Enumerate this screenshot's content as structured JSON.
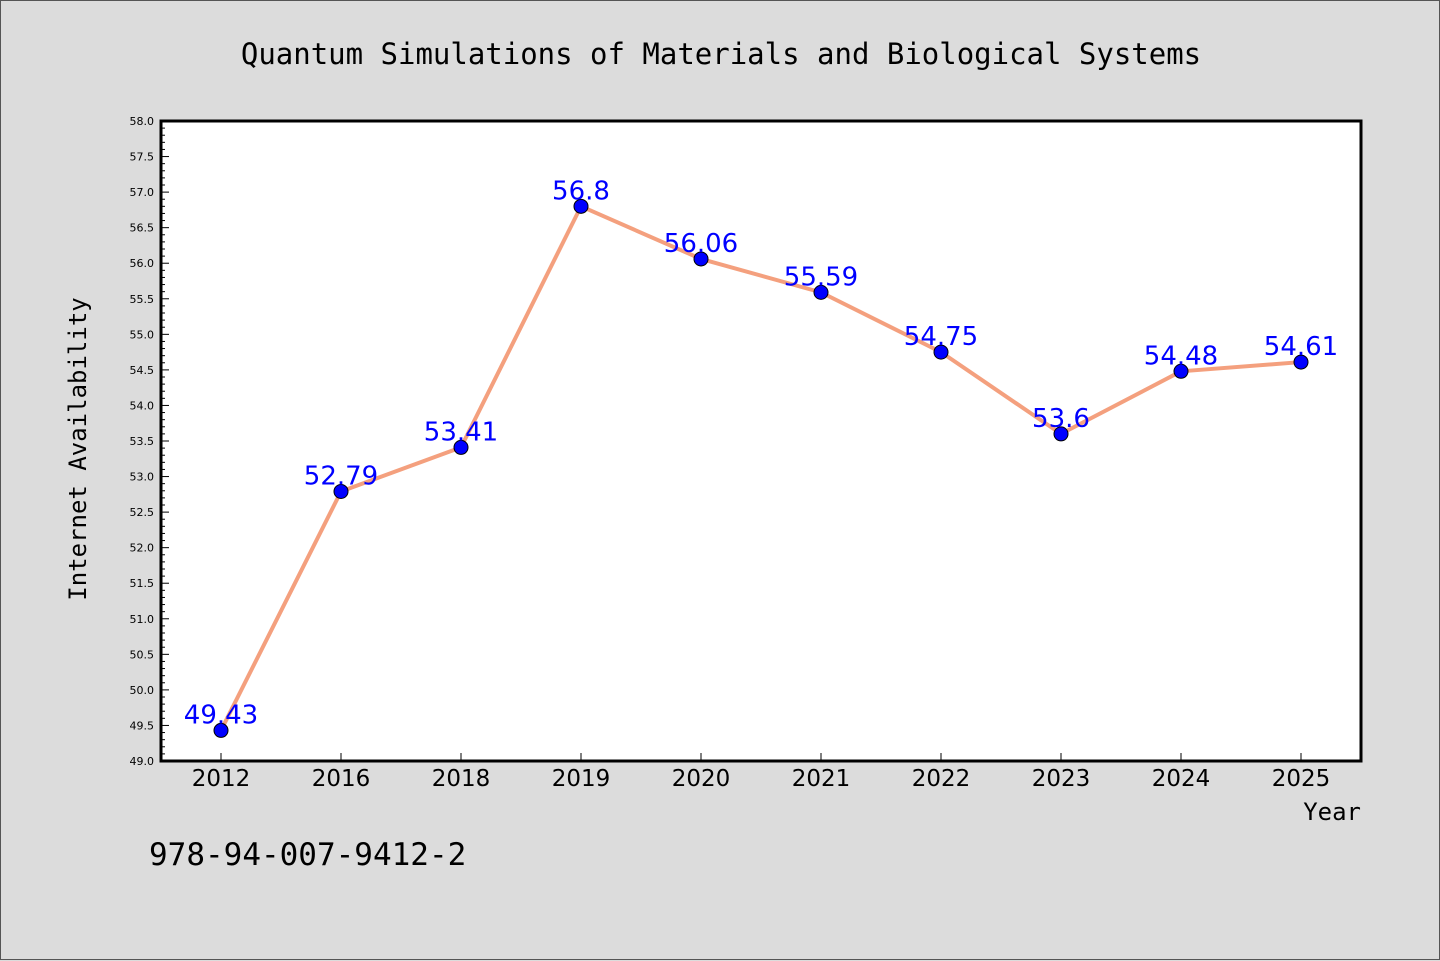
{
  "chart_data": {
    "type": "line",
    "title": "Quantum Simulations of Materials and Biological Systems",
    "xlabel": "Year",
    "ylabel": "Internet Availability",
    "categories": [
      "2012",
      "2016",
      "2018",
      "2019",
      "2020",
      "2021",
      "2022",
      "2023",
      "2024",
      "2025"
    ],
    "values": [
      49.43,
      52.79,
      53.41,
      56.8,
      56.06,
      55.59,
      54.75,
      53.6,
      54.48,
      54.61
    ],
    "data_labels": [
      "49.43",
      "52.79",
      "53.41",
      "56.8",
      "56.06",
      "55.59",
      "54.75",
      "53.6",
      "54.48",
      "54.61"
    ],
    "ylim": [
      49.0,
      58.0
    ],
    "yticks": [
      "49.0",
      "49.5",
      "50.0",
      "50.5",
      "51.0",
      "51.5",
      "52.0",
      "52.5",
      "53.0",
      "53.5",
      "54.0",
      "54.5",
      "55.0",
      "55.5",
      "56.0",
      "56.5",
      "57.0",
      "57.5",
      "58.0"
    ],
    "grid": false,
    "legend": "none",
    "colors": {
      "line": "#f4a07e",
      "marker": "#0000ff",
      "label": "#0000ff",
      "background": "#dcdcdc",
      "plot_area": "#ffffff"
    }
  },
  "footer": {
    "isbn": "978-94-007-9412-2"
  }
}
